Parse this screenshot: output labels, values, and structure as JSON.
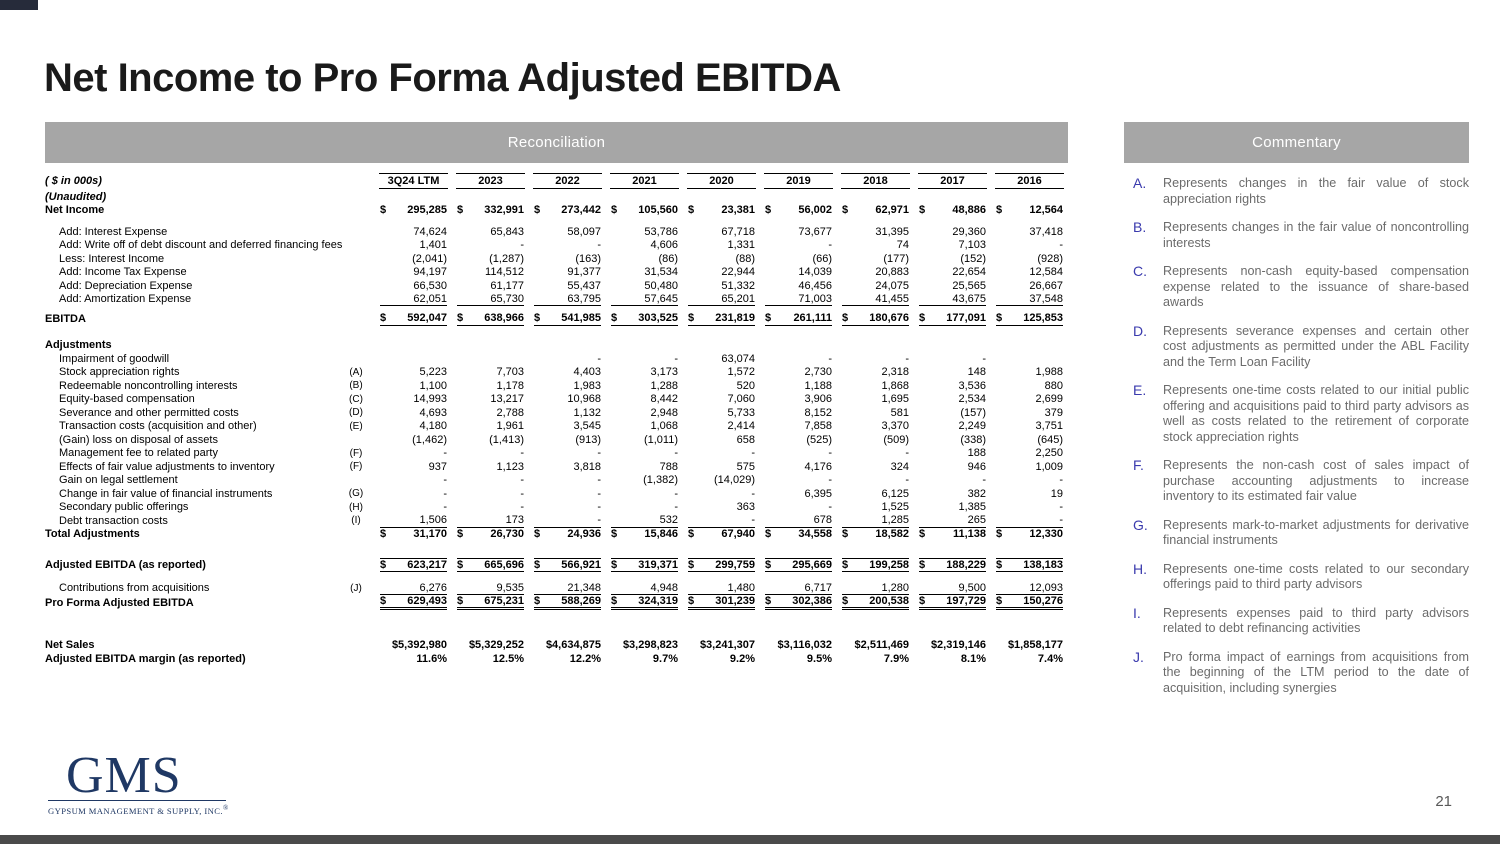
{
  "slide": {
    "title": "Net Income to Pro Forma Adjusted EBITDA",
    "left_panel_header": "Reconciliation",
    "right_panel_header": "Commentary",
    "page_number": "21",
    "logo": {
      "text": "GMS",
      "subtext": "GYPSUM MANAGEMENT & SUPPLY, INC.",
      "registered": "®"
    }
  },
  "colors": {
    "panel_bar_gray": "#a6a6a6",
    "logo_navy": "#1f3864",
    "commentary_letter_blue": "#3a3aad",
    "commentary_text_gray": "#6b6b6b",
    "bottom_bar_charcoal": "#4a4a4a"
  },
  "table": {
    "units_label": "( $ in 000s)",
    "columns": [
      "3Q24 LTM",
      "2023",
      "2022",
      "2021",
      "2020",
      "2019",
      "2018",
      "2017",
      "2016"
    ],
    "rows": [
      {
        "name": "row-unaudited",
        "label": "(Unaudited)",
        "italic": true,
        "bold": true,
        "values": [
          "",
          "",
          "",
          "",
          "",
          "",
          "",
          "",
          ""
        ]
      },
      {
        "name": "row-net-income",
        "label": "Net Income",
        "bold": true,
        "dollar": true,
        "values": [
          "295,285",
          "332,991",
          "273,442",
          "105,560",
          "23,381",
          "56,002",
          "62,971",
          "48,886",
          "12,564"
        ]
      },
      {
        "type": "spacer",
        "h": 8
      },
      {
        "name": "row-interest-expense",
        "label": "Add: Interest Expense",
        "indent": true,
        "values": [
          "74,624",
          "65,843",
          "58,097",
          "53,786",
          "67,718",
          "73,677",
          "31,395",
          "29,360",
          "37,418"
        ]
      },
      {
        "name": "row-write-off-debt-discount",
        "label": "Add: Write off of debt discount and deferred financing fees",
        "indent": true,
        "values": [
          "1,401",
          "-",
          "-",
          "4,606",
          "1,331",
          "-",
          "74",
          "7,103",
          "-"
        ]
      },
      {
        "name": "row-interest-income",
        "label": "Less: Interest Income",
        "indent": true,
        "values": [
          "(2,041)",
          "(1,287)",
          "(163)",
          "(86)",
          "(88)",
          "(66)",
          "(177)",
          "(152)",
          "(928)"
        ]
      },
      {
        "name": "row-income-tax-expense",
        "label": "Add: Income Tax Expense",
        "indent": true,
        "values": [
          "94,197",
          "114,512",
          "91,377",
          "31,534",
          "22,944",
          "14,039",
          "20,883",
          "22,654",
          "12,584"
        ]
      },
      {
        "name": "row-depreciation-expense",
        "label": "Add: Depreciation Expense",
        "indent": true,
        "values": [
          "66,530",
          "61,177",
          "55,437",
          "50,480",
          "51,332",
          "46,456",
          "24,075",
          "25,565",
          "26,667"
        ]
      },
      {
        "name": "row-amortization-expense",
        "label": "Add: Amortization Expense",
        "indent": true,
        "cls": "ub",
        "values": [
          "62,051",
          "65,730",
          "63,795",
          "57,645",
          "65,201",
          "71,003",
          "41,455",
          "43,675",
          "37,548"
        ]
      },
      {
        "type": "spacer",
        "h": 6
      },
      {
        "name": "row-ebitda",
        "label": "EBITDA",
        "bold": true,
        "dollar": true,
        "cls": "ub",
        "values": [
          "592,047",
          "638,966",
          "541,985",
          "303,525",
          "231,819",
          "261,111",
          "180,676",
          "177,091",
          "125,853"
        ]
      },
      {
        "type": "spacer",
        "h": 13
      },
      {
        "name": "row-adjustments-header",
        "label": "Adjustments",
        "bold": true,
        "values": [
          "",
          "",
          "",
          "",
          "",
          "",
          "",
          "",
          ""
        ]
      },
      {
        "name": "row-impairment-goodwill",
        "label": "Impairment of goodwill",
        "indent": true,
        "values": [
          "",
          "",
          "-",
          "-",
          "63,074",
          "-",
          "-",
          "-",
          ""
        ]
      },
      {
        "name": "row-stock-appreciation-rights",
        "label": "Stock appreciation rights",
        "ref": "(A)",
        "indent": true,
        "values": [
          "5,223",
          "7,703",
          "4,403",
          "3,173",
          "1,572",
          "2,730",
          "2,318",
          "148",
          "1,988"
        ]
      },
      {
        "name": "row-redeemable-noncontrolling",
        "label": "Redeemable noncontrolling interests",
        "ref": "(B)",
        "indent": true,
        "values": [
          "1,100",
          "1,178",
          "1,983",
          "1,288",
          "520",
          "1,188",
          "1,868",
          "3,536",
          "880"
        ]
      },
      {
        "name": "row-equity-based-compensation",
        "label": "Equity-based compensation",
        "ref": "(C)",
        "indent": true,
        "values": [
          "14,993",
          "13,217",
          "10,968",
          "8,442",
          "7,060",
          "3,906",
          "1,695",
          "2,534",
          "2,699"
        ]
      },
      {
        "name": "row-severance-permitted-costs",
        "label": "Severance and other permitted costs",
        "ref": "(D)",
        "indent": true,
        "values": [
          "4,693",
          "2,788",
          "1,132",
          "2,948",
          "5,733",
          "8,152",
          "581",
          "(157)",
          "379"
        ]
      },
      {
        "name": "row-transaction-costs",
        "label": "Transaction costs (acquisition and other)",
        "ref": "(E)",
        "indent": true,
        "values": [
          "4,180",
          "1,961",
          "3,545",
          "1,068",
          "2,414",
          "7,858",
          "3,370",
          "2,249",
          "3,751"
        ]
      },
      {
        "name": "row-gain-loss-disposal",
        "label": "(Gain) loss on disposal of assets",
        "indent": true,
        "values": [
          "(1,462)",
          "(1,413)",
          "(913)",
          "(1,011)",
          "658",
          "(525)",
          "(509)",
          "(338)",
          "(645)"
        ]
      },
      {
        "name": "row-management-fee",
        "label": "Management fee to related party",
        "ref": "(F)",
        "indent": true,
        "values": [
          "-",
          "-",
          "-",
          "-",
          "-",
          "-",
          "-",
          "188",
          "2,250"
        ]
      },
      {
        "name": "row-fair-value-inventory",
        "label": "Effects of fair value adjustments to inventory",
        "ref": "(F)",
        "indent": true,
        "values": [
          "937",
          "1,123",
          "3,818",
          "788",
          "575",
          "4,176",
          "324",
          "946",
          "1,009"
        ]
      },
      {
        "name": "row-gain-legal-settlement",
        "label": "Gain on legal settlement",
        "indent": true,
        "values": [
          "-",
          "-",
          "-",
          "(1,382)",
          "(14,029)",
          "-",
          "-",
          "-",
          "-"
        ]
      },
      {
        "name": "row-change-fair-value-instruments",
        "label": "Change in fair value of financial instruments",
        "ref": "(G)",
        "indent": true,
        "values": [
          "-",
          "-",
          "-",
          "-",
          "-",
          "6,395",
          "6,125",
          "382",
          "19"
        ]
      },
      {
        "name": "row-secondary-public-offerings",
        "label": "Secondary public offerings",
        "ref": "(H)",
        "indent": true,
        "values": [
          "-",
          "-",
          "-",
          "-",
          "363",
          "-",
          "1,525",
          "1,385",
          "-"
        ]
      },
      {
        "name": "row-debt-transaction-costs",
        "label": "Debt transaction costs",
        "ref": "(I)",
        "indent": true,
        "cls": "ub",
        "values": [
          "1,506",
          "173",
          "-",
          "532",
          "-",
          "678",
          "1,285",
          "265",
          "-"
        ]
      },
      {
        "name": "row-total-adjustments",
        "label": "Total Adjustments",
        "bold": true,
        "dollar": true,
        "values": [
          "31,170",
          "26,730",
          "24,936",
          "15,846",
          "67,940",
          "34,558",
          "18,582",
          "11,138",
          "12,330"
        ]
      },
      {
        "type": "spacer",
        "h": 17
      },
      {
        "name": "row-adjusted-ebitda",
        "label": "Adjusted EBITDA (as reported)",
        "bold": true,
        "dollar": true,
        "cls": "ua ub",
        "values": [
          "623,217",
          "665,696",
          "566,921",
          "319,371",
          "299,759",
          "295,669",
          "199,258",
          "188,229",
          "138,183"
        ]
      },
      {
        "type": "spacer",
        "h": 10
      },
      {
        "name": "row-contributions-acquisitions",
        "label": "Contributions from acquisitions",
        "ref": "(J)",
        "indent": true,
        "cls": "ub",
        "values": [
          "6,276",
          "9,535",
          "21,348",
          "4,948",
          "1,480",
          "6,717",
          "1,280",
          "9,500",
          "12,093"
        ]
      },
      {
        "name": "row-pro-forma-adjusted-ebitda",
        "label": "Pro Forma Adjusted EBITDA",
        "bold": true,
        "dollar": true,
        "cls": "dbl",
        "values": [
          "629,493",
          "675,231",
          "588,269",
          "324,319",
          "301,239",
          "302,386",
          "200,538",
          "197,729",
          "150,276"
        ]
      },
      {
        "type": "spacer",
        "h": 30
      },
      {
        "name": "row-net-sales",
        "label": "Net Sales",
        "bold": true,
        "values": [
          "$5,392,980",
          "$5,329,252",
          "$4,634,875",
          "$3,298,823",
          "$3,241,307",
          "$3,116,032",
          "$2,511,469",
          "$2,319,146",
          "$1,858,177"
        ]
      },
      {
        "name": "row-adjusted-ebitda-margin",
        "label": "Adjusted EBITDA margin (as reported)",
        "bold": true,
        "values": [
          "11.6%",
          "12.5%",
          "12.2%",
          "9.7%",
          "9.2%",
          "9.5%",
          "7.9%",
          "8.1%",
          "7.4%"
        ]
      }
    ]
  },
  "commentary": {
    "items": [
      {
        "letter": "A.",
        "text": "Represents changes in the fair value of stock appreciation rights"
      },
      {
        "letter": "B.",
        "text": "Represents changes in the fair value of noncontrolling interests"
      },
      {
        "letter": "C.",
        "text": "Represents non-cash equity-based compensation expense related to the issuance of share-based awards"
      },
      {
        "letter": "D.",
        "text": "Represents severance expenses and certain other cost adjustments as permitted under the ABL Facility and the Term Loan Facility"
      },
      {
        "letter": "E.",
        "text": "Represents one-time costs related to our initial public offering and acquisitions paid to third party advisors as well as costs related to the retirement of corporate stock appreciation rights"
      },
      {
        "letter": "F.",
        "text": "Represents the non-cash cost of sales impact of purchase accounting adjustments to increase inventory to its estimated fair value"
      },
      {
        "letter": "G.",
        "text": "Represents mark-to-market adjustments for derivative financial instruments"
      },
      {
        "letter": "H.",
        "text": "Represents one-time costs related to our secondary offerings paid to third party advisors"
      },
      {
        "letter": "I.",
        "text": "Represents expenses paid to third party advisors related to debt refinancing activities"
      },
      {
        "letter": "J.",
        "text": "Pro forma impact of earnings from acquisitions from the beginning of the LTM period to the date of acquisition, including synergies"
      }
    ]
  }
}
